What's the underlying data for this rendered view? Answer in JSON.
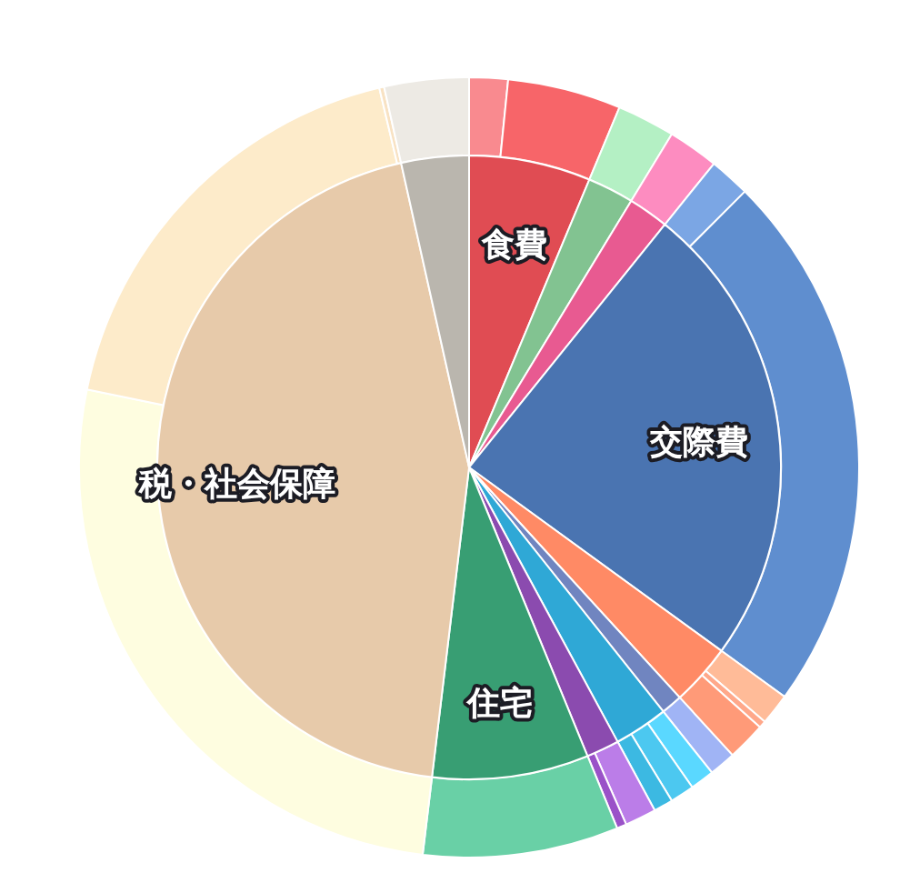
{
  "chart_data": [
    {
      "type": "pie",
      "categories": [
        "食費",
        null,
        null,
        "交際費",
        null,
        null,
        null,
        null,
        "住宅",
        "税・社会保障",
        null
      ],
      "values": [
        6.3,
        2.4,
        2.1,
        24.2,
        3.2,
        1.1,
        2.8,
        1.7,
        8.1,
        44.6,
        3.5
      ],
      "colors": [
        "#e04c53",
        "#82c391",
        "#e85a91",
        "#4a74b1",
        "#ff8a65",
        "#7085c0",
        "#2fa8d6",
        "#8b4baf",
        "#389e73",
        "#e7caaa",
        "#bab6ae"
      ]
    },
    {
      "type": "donut",
      "categories": [
        null,
        null,
        null,
        null,
        null,
        null,
        null,
        null,
        null,
        null,
        null,
        null,
        null,
        null,
        null,
        null,
        null,
        null,
        null,
        null
      ],
      "values": [
        1.6,
        4.7,
        2.4,
        2.1,
        1.7,
        22.5,
        1.3,
        0.3,
        1.6,
        1.1,
        1.0,
        1.0,
        0.8,
        1.3,
        0.4,
        8.1,
        26.3,
        18.1,
        0.2,
        3.5
      ],
      "colors": [
        "#f98a8f",
        "#f76569",
        "#b4f0c4",
        "#fd8cc0",
        "#7ba6e4",
        "#5f8ecf",
        "#ffbb98",
        "#ffa88a",
        "#ff9a78",
        "#a0b4f5",
        "#5ad8ff",
        "#4cc8f0",
        "#3cb9e2",
        "#bb7de8",
        "#9a52c8",
        "#69d0a6",
        "#fefde0",
        "#fdebca",
        "#f8e2c3",
        "#edeae4"
      ]
    }
  ]
}
